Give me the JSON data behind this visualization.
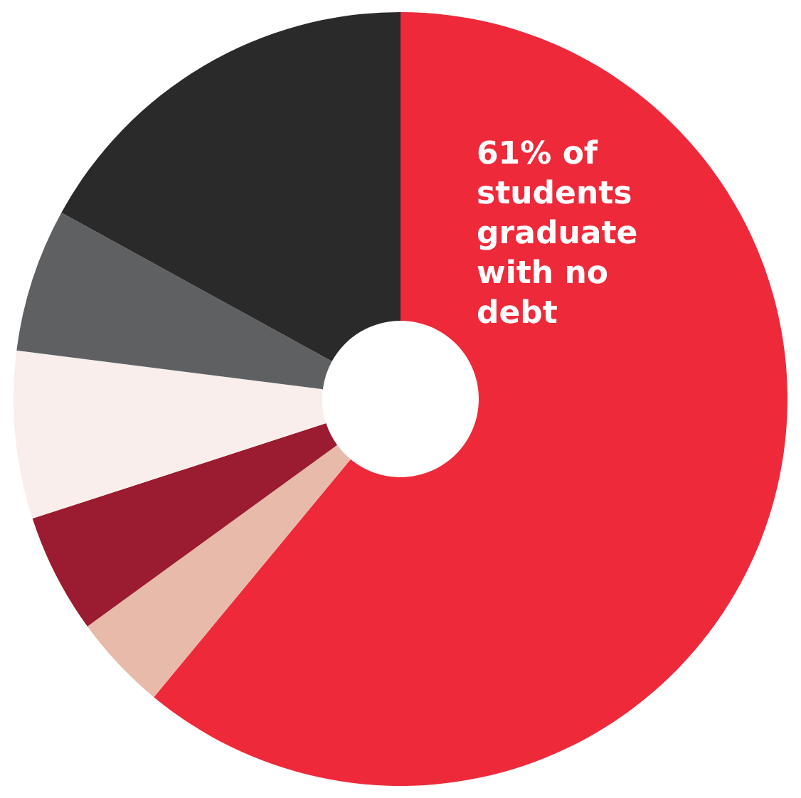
{
  "chart_data": {
    "type": "donut",
    "categories": [
      null,
      null,
      null,
      null,
      null,
      null
    ],
    "values": [
      61,
      4,
      5,
      7,
      6,
      17
    ],
    "colors": [
      "#ee2a3a",
      "#e8baa9",
      "#9b1b30",
      "#f9eeeb",
      "#5f6062",
      "#2a2a2a"
    ],
    "annotations": [
      "61% of students graduate with no debt"
    ],
    "legend": false
  }
}
